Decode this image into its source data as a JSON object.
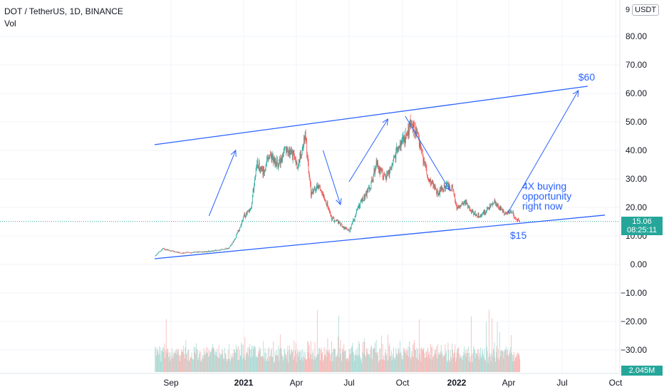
{
  "header": {
    "symbol_line": "DOT / TetherUS, 1D, BINANCE",
    "indicator": "Vol"
  },
  "currency_badge": "USDT",
  "currency_badge_prefix": "9",
  "price_tag": {
    "value": "15.06",
    "countdown": "08:25:11"
  },
  "volume_tag": "2.045M",
  "colors": {
    "up": "#26a69a",
    "down": "#ef5350",
    "up_vol": "#a8dbd5",
    "down_vol": "#f6b6b4",
    "drawing": "#2962ff",
    "last_price_line": "#26a69a",
    "grid": "#f0f3fa"
  },
  "chart_data": {
    "type": "candlestick",
    "title": "DOT / TetherUS, 1D, BINANCE",
    "ylim": [
      -35,
      90
    ],
    "y_ticks": [
      "80.00",
      "70.00",
      "60.00",
      "50.00",
      "40.00",
      "30.00",
      "20.00",
      "10.00",
      "0.00",
      "−10.00",
      "−20.00",
      "−30.00"
    ],
    "y_tick_values": [
      80,
      70,
      60,
      50,
      40,
      30,
      20,
      10,
      0,
      -10,
      -20,
      -30
    ],
    "x_ticks": [
      {
        "label": "Sep",
        "bold": false
      },
      {
        "label": "2021",
        "bold": true
      },
      {
        "label": "Apr",
        "bold": false
      },
      {
        "label": "Jul",
        "bold": false
      },
      {
        "label": "Oct",
        "bold": false
      },
      {
        "label": "2022",
        "bold": true
      },
      {
        "label": "Apr",
        "bold": false
      },
      {
        "label": "Jul",
        "bold": false
      },
      {
        "label": "Oct",
        "bold": false
      }
    ],
    "price_path": {
      "dates": [
        "2020-08-19",
        "2020-09-01",
        "2020-10-01",
        "2020-11-15",
        "2020-12-10",
        "2020-12-25",
        "2021-01-03",
        "2021-01-10",
        "2021-01-20",
        "2021-02-01",
        "2021-02-10",
        "2021-02-20",
        "2021-03-05",
        "2021-03-20",
        "2021-04-01",
        "2021-04-15",
        "2021-04-22",
        "2021-05-05",
        "2021-05-15",
        "2021-05-25",
        "2021-06-05",
        "2021-06-20",
        "2021-06-30",
        "2021-07-10",
        "2021-07-21",
        "2021-08-05",
        "2021-08-25",
        "2021-09-05",
        "2021-09-20",
        "2021-10-01",
        "2021-10-10",
        "2021-10-25",
        "2021-11-04",
        "2021-11-15",
        "2021-11-25",
        "2021-12-05",
        "2021-12-20",
        "2022-01-05",
        "2022-01-15",
        "2022-01-22",
        "2022-02-05",
        "2022-02-20",
        "2022-03-05",
        "2022-03-15",
        "2022-03-28",
        "2022-04-05",
        "2022-04-15",
        "2022-04-25",
        "2022-05-05",
        "2022-05-11"
      ],
      "close": [
        3.0,
        5.5,
        4.0,
        4.5,
        5.0,
        6.0,
        8.5,
        12.0,
        17.0,
        20.0,
        36.0,
        32.0,
        38.0,
        35.0,
        40.0,
        38.0,
        34.0,
        45.0,
        25.0,
        27.0,
        25.0,
        16.0,
        15.0,
        13.0,
        12.0,
        20.0,
        27.0,
        35.0,
        30.0,
        33.0,
        40.0,
        44.0,
        50.0,
        45.0,
        37.0,
        30.0,
        25.0,
        28.0,
        26.0,
        20.0,
        22.0,
        18.0,
        17.0,
        19.0,
        22.0,
        20.0,
        18.0,
        19.0,
        15.5,
        15.06
      ]
    },
    "volume_scale_max": 6.0,
    "last_price": 15.06,
    "trendlines": [
      {
        "name": "upper-channel-line",
        "from": {
          "date": "2020-08-18",
          "price": 42
        },
        "to": {
          "date": "2022-09-05",
          "price": 62.5
        }
      },
      {
        "name": "lower-channel-line",
        "from": {
          "date": "2020-08-18",
          "price": 2
        },
        "to": {
          "date": "2022-10-05",
          "price": 17.3
        }
      }
    ],
    "arrows": [
      {
        "name": "arrow-up-1",
        "from": {
          "date": "2020-11-20",
          "price": 17
        },
        "to": {
          "date": "2021-01-05",
          "price": 40
        }
      },
      {
        "name": "arrow-down-1",
        "from": {
          "date": "2021-06-05",
          "price": 40
        },
        "to": {
          "date": "2021-07-05",
          "price": 21
        }
      },
      {
        "name": "arrow-up-2",
        "from": {
          "date": "2021-07-20",
          "price": 29
        },
        "to": {
          "date": "2021-09-25",
          "price": 51
        }
      },
      {
        "name": "arrow-down-2",
        "from": {
          "date": "2021-10-25",
          "price": 52
        },
        "to": {
          "date": "2022-01-10",
          "price": 26
        }
      },
      {
        "name": "arrow-up-3",
        "from": {
          "date": "2022-04-20",
          "price": 18
        },
        "to": {
          "date": "2022-08-20",
          "price": 61
        }
      }
    ],
    "annotations": [
      {
        "name": "target-label",
        "text": "$60",
        "date": "2022-08-20",
        "price": 64.5
      },
      {
        "name": "support-label",
        "text": "$15",
        "date": "2022-04-24",
        "price": 9.0
      },
      {
        "name": "note-line-1",
        "text": "4X buying",
        "date": "2022-05-15",
        "price": 26.2
      },
      {
        "name": "note-line-2",
        "text": "opportunity",
        "date": "2022-05-15",
        "price": 22.7
      },
      {
        "name": "note-line-3",
        "text": "right now",
        "date": "2022-05-15",
        "price": 19.3
      }
    ]
  }
}
